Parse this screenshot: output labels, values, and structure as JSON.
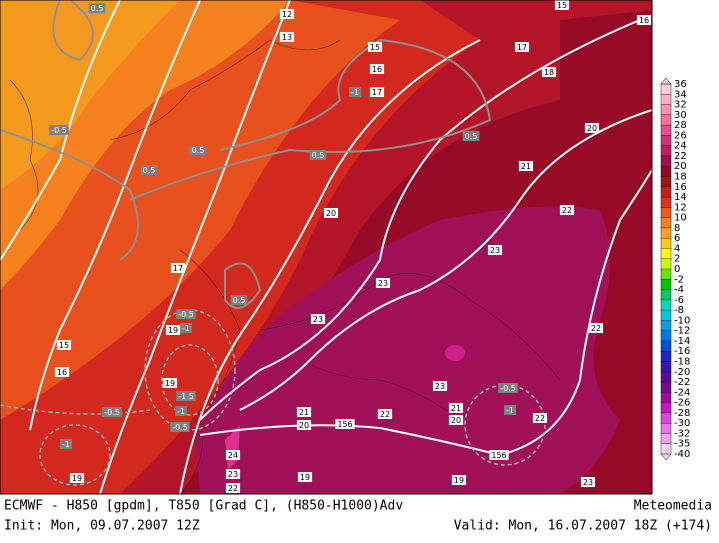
{
  "map": {
    "isoline_labels": [
      "12",
      "13",
      "15",
      "16",
      "15",
      "17",
      "16",
      "17",
      "18",
      "20",
      "21",
      "20",
      "22",
      "23",
      "17",
      "23",
      "23",
      "22",
      "15",
      "16",
      "19",
      "19",
      "23",
      "21",
      "22",
      "21",
      "20",
      "20",
      "156",
      "156",
      "22",
      "24",
      "19",
      "19",
      "23",
      "22",
      "19",
      "23"
    ],
    "anomaly_labels": [
      "0.5",
      "-0.5",
      "0.5",
      "0.5",
      "-1",
      "0.5",
      "0.5",
      "0.5",
      "-0.5",
      "-1",
      "-1.5",
      "-1",
      "-0.5",
      "-0.5",
      "-0.5",
      "-1",
      "-1"
    ]
  },
  "colorbar": {
    "labels": [
      "36",
      "34",
      "32",
      "30",
      "28",
      "26",
      "24",
      "22",
      "20",
      "18",
      "16",
      "14",
      "12",
      "10",
      "8",
      "6",
      "4",
      "2",
      "0",
      "-2",
      "-4",
      "-6",
      "-8",
      "-10",
      "-12",
      "-14",
      "-16",
      "-18",
      "-20",
      "-22",
      "-24",
      "-26",
      "-28",
      "-30",
      "-32",
      "-35",
      "-40"
    ],
    "colors": [
      "#ffd0dc",
      "#ffb0c8",
      "#ff90b4",
      "#f870a0",
      "#e8508c",
      "#d83078",
      "#c01c64",
      "#a01050",
      "#8c0a28",
      "#a0141e",
      "#c81e1e",
      "#e0321e",
      "#f05a1e",
      "#f5821e",
      "#ffa01e",
      "#ffc81e",
      "#ffff00",
      "#c8ff00",
      "#64e600",
      "#00c800",
      "#00c864",
      "#00dcb4",
      "#00c8dc",
      "#00a0e6",
      "#0078f0",
      "#0050dc",
      "#1e28c8",
      "#3c14b4",
      "#5a0aa0",
      "#780a8c",
      "#a00aa0",
      "#c814c8",
      "#dc46dc",
      "#e678e6",
      "#f0a0f0",
      "#f8d0f8"
    ]
  },
  "footer": {
    "title": "ECMWF - H850 [gpdm], T850 [Grad C], (H850-H1000)Adv",
    "brand": "Meteomedia",
    "init": "Init: Mon, 09.07.2007 12Z",
    "valid": "Valid: Mon, 16.07.2007 18Z (+174)"
  }
}
